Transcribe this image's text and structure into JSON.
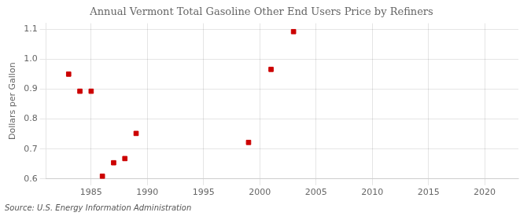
{
  "chart_data": {
    "type": "scatter",
    "title": "Annual Vermont Total Gasoline Other End Users Price by Refiners",
    "y_label": "Dollars per Gallon",
    "annotations": [
      "Source: U.S. Energy Information Administration"
    ],
    "x": [
      1983,
      1984,
      1985,
      1986,
      1987,
      1988,
      1989,
      1999,
      2001,
      2003
    ],
    "values": [
      0.95,
      0.893,
      0.893,
      0.609,
      0.654,
      0.668,
      0.752,
      0.722,
      0.966,
      1.092
    ],
    "color": "#cc0000",
    "marker": "square",
    "xlim": [
      1981,
      2023
    ],
    "ylim": [
      0.6,
      1.12
    ],
    "xticks": [
      1985,
      1990,
      1995,
      2000,
      2005,
      2010,
      2015,
      2020
    ],
    "yticks": [
      0.6,
      0.7,
      0.8,
      0.9,
      {
        "value": 1.0,
        "label": "1.0"
      },
      1.1
    ],
    "grid": true
  }
}
